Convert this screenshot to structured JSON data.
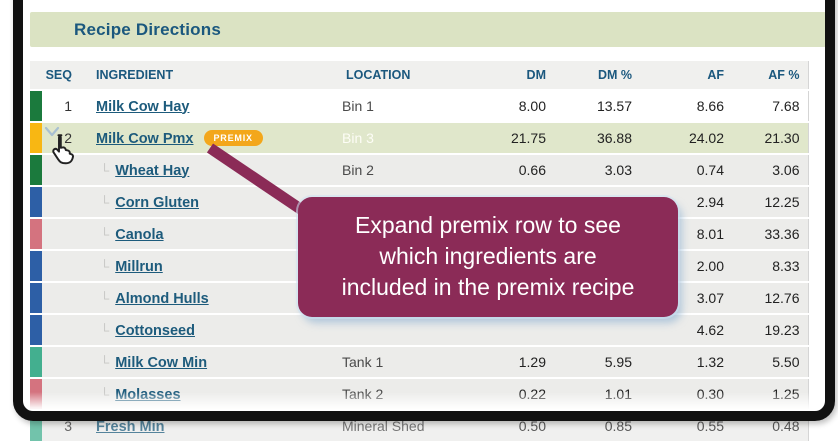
{
  "panel": {
    "title": "Recipe Directions"
  },
  "table": {
    "columns": {
      "seq": "SEQ",
      "ingredient": "INGREDIENT",
      "location": "LOCATION",
      "dm": "DM",
      "dm_pct": "DM %",
      "af": "AF",
      "af_pct": "AF %"
    },
    "rows": [
      {
        "seq": "1",
        "name": "Milk Cow Hay",
        "location": "Bin 1",
        "dm": "8.00",
        "dm_pct": "13.57",
        "af": "8.66",
        "af_pct": "7.68",
        "bar": "green",
        "type": "top"
      },
      {
        "seq": "2",
        "name": "Milk Cow Pmx",
        "badge": "PREMIX",
        "location": "Bin 3",
        "dm": "21.75",
        "dm_pct": "36.88",
        "af": "24.02",
        "af_pct": "21.30",
        "bar": "yellow",
        "type": "top",
        "highlighted": true,
        "expandable": true
      },
      {
        "name": "Wheat Hay",
        "location": "Bin 2",
        "dm": "0.66",
        "dm_pct": "3.03",
        "af": "0.74",
        "af_pct": "3.06",
        "bar": "green",
        "type": "sub"
      },
      {
        "name": "Corn Gluten",
        "location": "",
        "dm": "",
        "dm_pct": "",
        "af": "2.94",
        "af_pct": "12.25",
        "bar": "blue",
        "type": "sub"
      },
      {
        "name": "Canola",
        "location": "",
        "dm": "",
        "dm_pct": "",
        "af": "8.01",
        "af_pct": "33.36",
        "bar": "rose",
        "type": "sub"
      },
      {
        "name": "Millrun",
        "location": "",
        "dm": "",
        "dm_pct": "",
        "af": "2.00",
        "af_pct": "8.33",
        "bar": "blue",
        "type": "sub"
      },
      {
        "name": "Almond Hulls",
        "location": "",
        "dm": "",
        "dm_pct": "",
        "af": "3.07",
        "af_pct": "12.76",
        "bar": "blue",
        "type": "sub"
      },
      {
        "name": "Cottonseed",
        "location": "",
        "dm": "",
        "dm_pct": "",
        "af": "4.62",
        "af_pct": "19.23",
        "bar": "blue",
        "type": "sub"
      },
      {
        "name": "Milk Cow Min",
        "location": "Tank 1",
        "dm": "1.29",
        "dm_pct": "5.95",
        "af": "1.32",
        "af_pct": "5.50",
        "bar": "teal",
        "type": "sub"
      },
      {
        "name": "Molasses",
        "location": "Tank 2",
        "dm": "0.22",
        "dm_pct": "1.01",
        "af": "0.30",
        "af_pct": "1.25",
        "bar": "rose",
        "type": "sub"
      },
      {
        "seq": "3",
        "name": "Fresh Min",
        "location": "Mineral Shed",
        "dm": "0.50",
        "dm_pct": "0.85",
        "af": "0.55",
        "af_pct": "0.48",
        "bar": "teal",
        "type": "top",
        "faded": true
      }
    ]
  },
  "tooltip": {
    "text": "Expand premix row to see which ingredients are included in the premix recipe",
    "lines": [
      "Expand premix row to see",
      "which ingredients are",
      "included in the premix recipe"
    ]
  },
  "colors": {
    "title_color": "#1b587e",
    "header_bg": "#dbe3c3",
    "highlight_bg": "#e0e7cb",
    "tooltip_bg": "#8b2b57",
    "badge_bg": "#f3a71b",
    "bars": {
      "green": "#1b7a3d",
      "yellow": "#f8b713",
      "blue": "#2d5fa6",
      "rose": "#d4737f",
      "teal": "#43af8f"
    }
  }
}
